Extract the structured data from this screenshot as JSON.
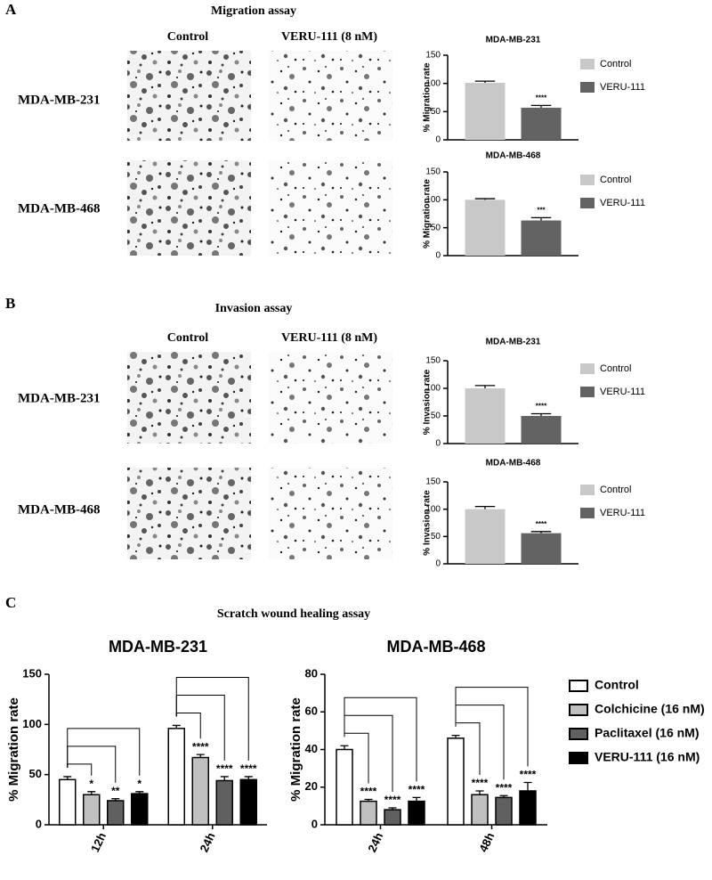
{
  "panels": [
    {
      "letter": "A",
      "title": "Migration assay",
      "columns": [
        "Control",
        "VERU-111 (8 nM)"
      ],
      "rows": [
        "MDA-MB-231",
        "MDA-MB-468"
      ]
    },
    {
      "letter": "B",
      "title": "Invasion assay",
      "columns": [
        "Control",
        "VERU-111 (8 nM)"
      ],
      "rows": [
        "MDA-MB-231",
        "MDA-MB-468"
      ]
    },
    {
      "letter": "C",
      "title": "Scratch wound healing assay"
    }
  ],
  "chart_data": [
    {
      "type": "bar",
      "title": "MDA-MB-231",
      "y_label": "% Migration rate",
      "ylim": [
        0,
        150
      ],
      "yticks": [
        0,
        50,
        100,
        150
      ],
      "series": [
        {
          "name": "Control",
          "color": "#c8c8c8",
          "values": [
            101
          ],
          "errors": [
            3
          ]
        },
        {
          "name": "VERU-111",
          "color": "#636363",
          "values": [
            57
          ],
          "errors": [
            4
          ],
          "annotations": [
            "****"
          ]
        }
      ]
    },
    {
      "type": "bar",
      "title": "MDA-MB-468",
      "y_label": "% Migration rate",
      "ylim": [
        0,
        150
      ],
      "yticks": [
        0,
        50,
        100,
        150
      ],
      "series": [
        {
          "name": "Control",
          "color": "#c8c8c8",
          "values": [
            100
          ],
          "errors": [
            2
          ]
        },
        {
          "name": "VERU-111",
          "color": "#636363",
          "values": [
            63
          ],
          "errors": [
            5
          ],
          "annotations": [
            "***"
          ]
        }
      ]
    },
    {
      "type": "bar",
      "title": "MDA-MB-231",
      "y_label": "% Invasion rate",
      "ylim": [
        0,
        150
      ],
      "yticks": [
        0,
        50,
        100,
        150
      ],
      "series": [
        {
          "name": "Control",
          "color": "#c8c8c8",
          "values": [
            100
          ],
          "errors": [
            5
          ]
        },
        {
          "name": "VERU-111",
          "color": "#636363",
          "values": [
            50
          ],
          "errors": [
            4
          ],
          "annotations": [
            "****"
          ]
        }
      ]
    },
    {
      "type": "bar",
      "title": "MDA-MB-468",
      "y_label": "% Invasion rate",
      "ylim": [
        0,
        150
      ],
      "yticks": [
        0,
        50,
        100,
        150
      ],
      "series": [
        {
          "name": "Control",
          "color": "#c8c8c8",
          "values": [
            100
          ],
          "errors": [
            5
          ]
        },
        {
          "name": "VERU-111",
          "color": "#636363",
          "values": [
            56
          ],
          "errors": [
            3
          ],
          "annotations": [
            "****"
          ]
        }
      ]
    },
    {
      "type": "bar",
      "title": "MDA-MB-231",
      "y_label": "% Migration rate",
      "ylim": [
        0,
        150
      ],
      "yticks": [
        0,
        50,
        100,
        150
      ],
      "categories": [
        "12h",
        "24h"
      ],
      "series": [
        {
          "color": "#ffffff",
          "values": [
            45,
            96
          ],
          "errors": [
            3,
            3
          ]
        },
        {
          "color": "#c0c0c0",
          "values": [
            30,
            67
          ],
          "errors": [
            3,
            3
          ],
          "annotations": [
            "*",
            "****"
          ]
        },
        {
          "color": "#606060",
          "values": [
            24,
            44
          ],
          "errors": [
            2,
            4
          ],
          "annotations": [
            "**",
            "****"
          ]
        },
        {
          "color": "#000000",
          "values": [
            31,
            45
          ],
          "errors": [
            2,
            3
          ],
          "annotations": [
            "*",
            "****"
          ]
        }
      ]
    },
    {
      "type": "bar",
      "title": "MDA-MB-468",
      "y_label": "% Migration rate",
      "ylim": [
        0,
        80
      ],
      "yticks": [
        0,
        20,
        40,
        60,
        80
      ],
      "categories": [
        "24h",
        "48h"
      ],
      "series": [
        {
          "name": "Control",
          "color": "#ffffff",
          "values": [
            40,
            46
          ],
          "errors": [
            2,
            1.5
          ]
        },
        {
          "name": "Colchicine (16 nM)",
          "color": "#c0c0c0",
          "values": [
            12.5,
            16
          ],
          "errors": [
            1,
            2
          ],
          "annotations": [
            "****",
            "****"
          ]
        },
        {
          "name": "Paclitaxel (16 nM)",
          "color": "#606060",
          "values": [
            8,
            14.5
          ],
          "errors": [
            1,
            1
          ],
          "annotations": [
            "****",
            "****"
          ]
        },
        {
          "name": "VERU-111 (16 nM)",
          "color": "#000000",
          "values": [
            12.5,
            18
          ],
          "errors": [
            2,
            4.5
          ],
          "annotations": [
            "****",
            "****"
          ]
        }
      ]
    }
  ]
}
